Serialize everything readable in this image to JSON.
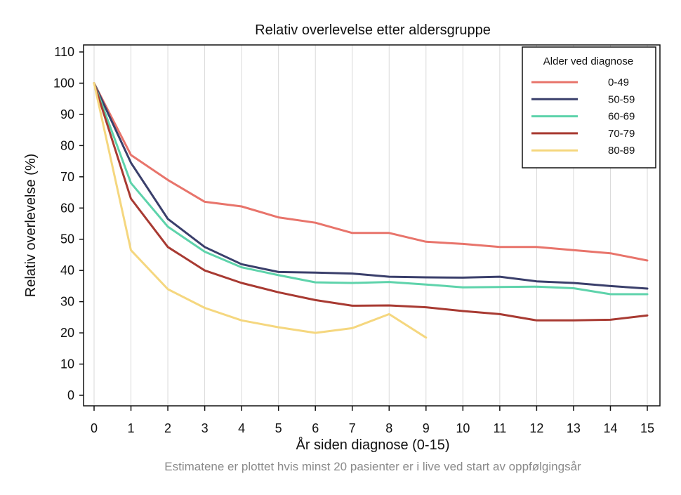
{
  "chart_data": {
    "type": "line",
    "title": "Relativ overlevelse etter aldersgruppe",
    "xlabel": "År siden diagnose (0-15)",
    "ylabel": "Relativ overlevelse (%)",
    "note": "Estimatene er plottet hvis minst 20 pasienter er i live ved start av oppfølgingsår",
    "xlim": [
      0,
      15
    ],
    "ylim": [
      0,
      110
    ],
    "x_ticks": [
      0,
      1,
      2,
      3,
      4,
      5,
      6,
      7,
      8,
      9,
      10,
      11,
      12,
      13,
      14,
      15
    ],
    "y_ticks": [
      0,
      10,
      20,
      30,
      40,
      50,
      60,
      70,
      80,
      90,
      100,
      110
    ],
    "grid": "vertical",
    "legend": {
      "title": "Alder ved diagnose",
      "position": "top-right"
    },
    "series": [
      {
        "name": "0-49",
        "color": "#e8746b",
        "x": [
          0,
          1,
          2,
          3,
          4,
          5,
          6,
          7,
          8,
          9,
          10,
          11,
          12,
          13,
          14,
          15
        ],
        "values": [
          100,
          77,
          69,
          62,
          60.5,
          57,
          55.3,
          52,
          52,
          49.2,
          48.5,
          47.5,
          47.5,
          46.5,
          45.5,
          43.2
        ]
      },
      {
        "name": "50-59",
        "color": "#3a3f6b",
        "x": [
          0,
          1,
          2,
          3,
          4,
          5,
          6,
          7,
          8,
          9,
          10,
          11,
          12,
          13,
          14,
          15
        ],
        "values": [
          100,
          74.5,
          56.5,
          47.5,
          42,
          39.5,
          39.3,
          39,
          38,
          37.8,
          37.7,
          38,
          36.5,
          36,
          35,
          34.2
        ]
      },
      {
        "name": "60-69",
        "color": "#5ed3ab",
        "x": [
          0,
          1,
          2,
          3,
          4,
          5,
          6,
          7,
          8,
          9,
          10,
          11,
          12,
          13,
          14,
          15
        ],
        "values": [
          100,
          68,
          54,
          46,
          41,
          38.5,
          36.2,
          36,
          36.3,
          35.5,
          34.6,
          34.7,
          34.8,
          34.3,
          32.4,
          32.4
        ]
      },
      {
        "name": "70-79",
        "color": "#a83a32",
        "x": [
          0,
          1,
          2,
          3,
          4,
          5,
          6,
          7,
          8,
          9,
          10,
          11,
          12,
          13,
          14,
          15
        ],
        "values": [
          100,
          63,
          47.5,
          40,
          36,
          33,
          30.5,
          28.7,
          28.8,
          28.2,
          27,
          26,
          24,
          24,
          24.2,
          25.6
        ]
      },
      {
        "name": "80-89",
        "color": "#f5d77f",
        "x": [
          0,
          1,
          2,
          3,
          4,
          5,
          6,
          7,
          8,
          9
        ],
        "values": [
          100,
          46.5,
          34,
          28,
          24,
          21.8,
          20,
          21.5,
          26,
          18.5
        ]
      }
    ]
  }
}
